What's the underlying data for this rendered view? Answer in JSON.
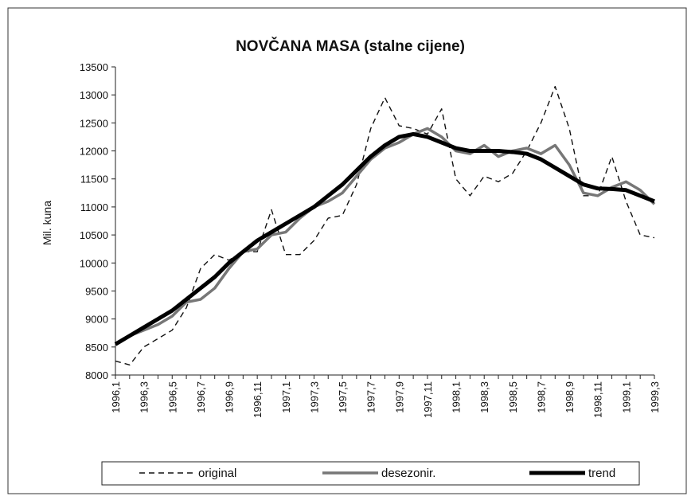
{
  "chart_data": {
    "type": "line",
    "title": "NOVČANA MASA  (stalne cijene)",
    "y_label": "Mil. kuna",
    "categories": [
      "1996,1",
      null,
      "1996,3",
      null,
      "1996,5",
      null,
      "1996,7",
      null,
      "1996,9",
      null,
      "1996,11",
      null,
      "1997,1",
      null,
      "1997,3",
      null,
      "1997,5",
      null,
      "1997,7",
      null,
      "1997,9",
      null,
      "1997,11",
      null,
      "1998,1",
      null,
      "1998,3",
      null,
      "1998,5",
      null,
      "1998,7",
      null,
      "1998,9",
      null,
      "1998,11",
      null,
      "1999,1",
      null,
      "1999,3"
    ],
    "series": [
      {
        "name": "original",
        "color": "#111111",
        "dashed": true,
        "values": [
          8250,
          8180,
          8500,
          8650,
          8800,
          9200,
          9900,
          10150,
          10050,
          10200,
          10200,
          10950,
          10150,
          10150,
          10400,
          10800,
          10850,
          11400,
          12400,
          12950,
          12450,
          12400,
          12300,
          12750,
          11500,
          11200,
          11550,
          11450,
          11600,
          12000,
          12500,
          13150,
          12400,
          11200,
          11200,
          11900,
          11100,
          10500,
          10450
        ]
      },
      {
        "name": "desezonir.",
        "color": "#777777",
        "dashed": false,
        "values": [
          8550,
          8700,
          8800,
          8900,
          9050,
          9300,
          9350,
          9550,
          9900,
          10200,
          10250,
          10500,
          10550,
          10800,
          11000,
          11100,
          11250,
          11550,
          11850,
          12050,
          12150,
          12300,
          12400,
          12250,
          12000,
          11950,
          12100,
          11900,
          12000,
          12050,
          11950,
          12100,
          11750,
          11250,
          11200,
          11350,
          11450,
          11300,
          11050
        ]
      },
      {
        "name": "trend",
        "color": "#000000",
        "dashed": false,
        "values": [
          8550,
          8700,
          8850,
          9000,
          9150,
          9350,
          9550,
          9750,
          10000,
          10200,
          10400,
          10550,
          10700,
          10850,
          11000,
          11200,
          11400,
          11650,
          11900,
          12100,
          12250,
          12300,
          12250,
          12150,
          12050,
          12000,
          12000,
          12000,
          11980,
          11950,
          11850,
          11700,
          11550,
          11400,
          11330,
          11320,
          11300,
          11200,
          11100
        ]
      }
    ],
    "ylim": [
      8000,
      13500
    ],
    "yticks": [
      8000,
      8500,
      9000,
      9500,
      10000,
      10500,
      11000,
      11500,
      12000,
      12500,
      13000,
      13500
    ],
    "grid": false,
    "legend": "bottom"
  }
}
